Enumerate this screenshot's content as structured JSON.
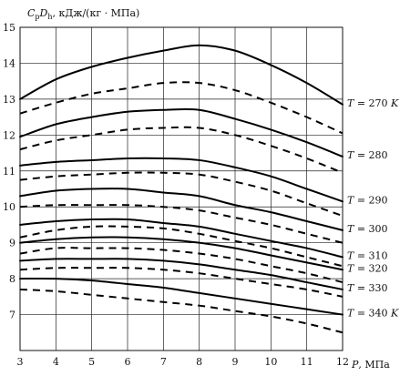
{
  "chart_data": {
    "type": "line",
    "ylabel": "C_pD_h, кДж/(кг · МПа)",
    "ylabel_parts": {
      "c": "C",
      "c_sub": "p",
      "d": "D",
      "d_sub": "h",
      "unit": ", кДж/(кг · МПа)"
    },
    "xlabel": "P, МПа",
    "xlabel_parts": {
      "var": "P",
      "unit": ", МПа"
    },
    "xlim": [
      3,
      12
    ],
    "ylim": [
      6,
      15
    ],
    "x_ticks": [
      "3",
      "4",
      "5",
      "6",
      "7",
      "8",
      "9",
      "10",
      "11",
      "12"
    ],
    "y_ticks": [
      "7",
      "8",
      "9",
      "10",
      "11",
      "12",
      "13",
      "14",
      "15"
    ],
    "grid": true,
    "x": [
      3,
      4,
      5,
      6,
      7,
      8,
      9,
      10,
      11,
      12
    ],
    "series": [
      {
        "label": "T = 270 K",
        "label_parts": {
          "var": "T",
          "eq": " = 270 ",
          "unit": "K"
        },
        "style": "solid",
        "values": [
          13.0,
          13.55,
          13.9,
          14.15,
          14.35,
          14.5,
          14.35,
          13.95,
          13.45,
          12.85
        ]
      },
      {
        "style": "dashed",
        "values": [
          12.6,
          12.9,
          13.15,
          13.3,
          13.45,
          13.45,
          13.25,
          12.9,
          12.5,
          12.05
        ]
      },
      {
        "label": "T = 280",
        "label_parts": {
          "var": "T",
          "eq": " = 280",
          "unit": ""
        },
        "style": "solid",
        "values": [
          11.95,
          12.3,
          12.5,
          12.65,
          12.7,
          12.7,
          12.45,
          12.15,
          11.8,
          11.4
        ]
      },
      {
        "style": "dashed",
        "values": [
          11.6,
          11.85,
          12.0,
          12.15,
          12.2,
          12.2,
          12.0,
          11.7,
          11.35,
          10.95
        ]
      },
      {
        "label": "T = 290",
        "label_parts": {
          "var": "T",
          "eq": " = 290",
          "unit": ""
        },
        "style": "solid",
        "values": [
          11.15,
          11.25,
          11.3,
          11.35,
          11.35,
          11.3,
          11.1,
          10.85,
          10.5,
          10.15
        ]
      },
      {
        "style": "dashed",
        "values": [
          10.75,
          10.85,
          10.9,
          10.95,
          10.95,
          10.9,
          10.7,
          10.45,
          10.1,
          9.75
        ]
      },
      {
        "label": "T = 300",
        "label_parts": {
          "var": "T",
          "eq": " = 300",
          "unit": ""
        },
        "style": "solid",
        "values": [
          10.3,
          10.45,
          10.5,
          10.5,
          10.4,
          10.3,
          10.05,
          9.85,
          9.6,
          9.35
        ]
      },
      {
        "style": "dashed",
        "values": [
          10.0,
          10.05,
          10.05,
          10.05,
          10.0,
          9.9,
          9.7,
          9.5,
          9.25,
          9.0
        ]
      },
      {
        "label": "T = 310",
        "label_parts": {
          "var": "T",
          "eq": " = 310",
          "unit": ""
        },
        "style": "solid",
        "values": [
          9.5,
          9.6,
          9.65,
          9.65,
          9.55,
          9.45,
          9.25,
          9.05,
          8.85,
          8.6
        ]
      },
      {
        "style": "dashed",
        "values": [
          9.15,
          9.35,
          9.45,
          9.45,
          9.4,
          9.25,
          9.05,
          8.85,
          8.6,
          8.35
        ]
      },
      {
        "label": "T = 320",
        "label_parts": {
          "var": "T",
          "eq": " = 320",
          "unit": ""
        },
        "style": "solid",
        "values": [
          9.0,
          9.1,
          9.15,
          9.15,
          9.1,
          9.0,
          8.85,
          8.65,
          8.45,
          8.25
        ]
      },
      {
        "style": "dashed",
        "values": [
          8.7,
          8.85,
          8.85,
          8.85,
          8.8,
          8.7,
          8.55,
          8.35,
          8.15,
          7.9
        ]
      },
      {
        "label": "T = 330",
        "label_parts": {
          "var": "T",
          "eq": " = 330",
          "unit": ""
        },
        "style": "solid",
        "values": [
          8.5,
          8.55,
          8.55,
          8.55,
          8.5,
          8.4,
          8.25,
          8.1,
          7.9,
          7.7
        ]
      },
      {
        "style": "dashed",
        "values": [
          8.25,
          8.3,
          8.3,
          8.3,
          8.25,
          8.15,
          8.0,
          7.85,
          7.7,
          7.5
        ]
      },
      {
        "label": "T = 340 K",
        "label_parts": {
          "var": "T",
          "eq": " = 340 ",
          "unit": "K"
        },
        "style": "solid",
        "values": [
          8.0,
          8.0,
          7.95,
          7.85,
          7.75,
          7.6,
          7.45,
          7.3,
          7.15,
          7.0
        ]
      },
      {
        "style": "dashed",
        "values": [
          7.7,
          7.65,
          7.55,
          7.45,
          7.35,
          7.25,
          7.1,
          6.95,
          6.75,
          6.5
        ]
      }
    ]
  }
}
